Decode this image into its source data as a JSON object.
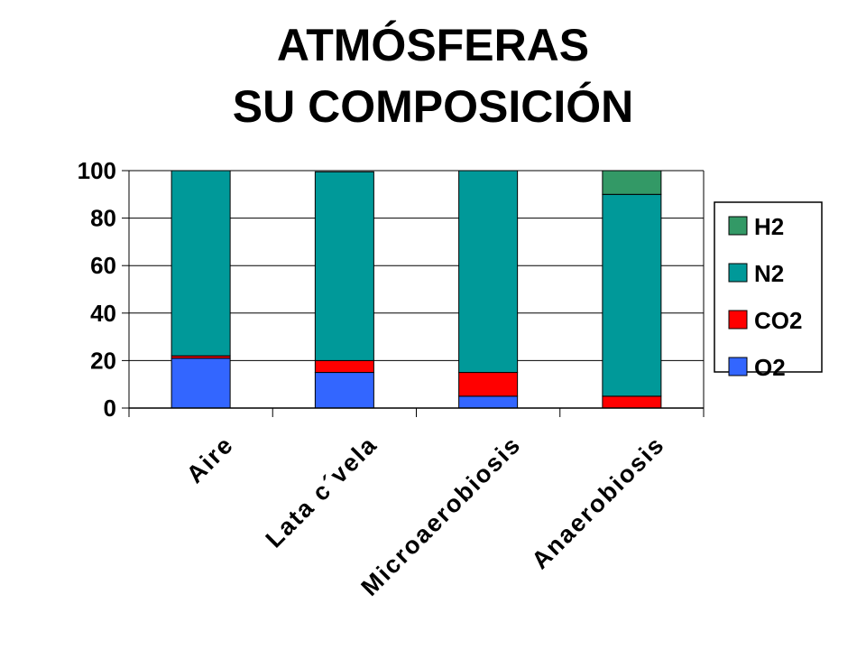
{
  "header": {
    "title": "ATMÓSFERAS",
    "subtitle": "SU COMPOSICIÓN"
  },
  "chart_data": {
    "type": "bar",
    "stacked": true,
    "categories": [
      "Aire",
      "Lata c´vela",
      "Microaerobiosis",
      "Anaerobiosis"
    ],
    "series": [
      {
        "name": "O2",
        "color": "#3366ff",
        "values": [
          21,
          15,
          5,
          0
        ]
      },
      {
        "name": "CO2",
        "color": "#ff0000",
        "values": [
          1,
          5,
          10,
          5
        ]
      },
      {
        "name": "N2",
        "color": "#009999",
        "values": [
          78,
          79.5,
          85,
          85
        ]
      },
      {
        "name": "H2",
        "color": "#339966",
        "values": [
          0,
          0,
          0,
          10
        ]
      }
    ],
    "ylim": [
      0,
      100
    ],
    "yticks": [
      0,
      20,
      40,
      60,
      80,
      100
    ],
    "grid": true,
    "legend": {
      "position": "right",
      "order": [
        "H2",
        "N2",
        "CO2",
        "O2"
      ]
    },
    "xlabel": "",
    "ylabel": ""
  }
}
